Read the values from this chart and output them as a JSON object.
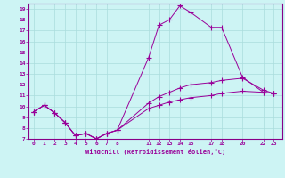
{
  "xlabel": "Windchill (Refroidissement éolien,°C)",
  "background_color": "#cdf4f4",
  "grid_color": "#aadddd",
  "line_color": "#990099",
  "spine_color": "#880088",
  "ylim": [
    7,
    19.5
  ],
  "xlim": [
    -0.5,
    23.8
  ],
  "yticks": [
    7,
    8,
    9,
    10,
    11,
    12,
    13,
    14,
    15,
    16,
    17,
    18,
    19
  ],
  "xticks": [
    0,
    1,
    2,
    3,
    4,
    5,
    6,
    7,
    8,
    11,
    12,
    13,
    14,
    15,
    17,
    18,
    20,
    22,
    23
  ],
  "line1_x": [
    0,
    1,
    2,
    3,
    4,
    5,
    6,
    7,
    8,
    11,
    12,
    13,
    14,
    15,
    17,
    18,
    20,
    22,
    23
  ],
  "line1_y": [
    9.5,
    10.1,
    9.4,
    8.5,
    7.3,
    7.5,
    7.0,
    7.5,
    7.8,
    14.5,
    17.5,
    18.0,
    19.3,
    18.7,
    17.3,
    17.3,
    12.7,
    11.3,
    11.2
  ],
  "line2_x": [
    0,
    1,
    2,
    3,
    4,
    5,
    6,
    7,
    8,
    11,
    12,
    13,
    14,
    15,
    17,
    18,
    20,
    22,
    23
  ],
  "line2_y": [
    9.5,
    10.1,
    9.4,
    8.5,
    7.3,
    7.5,
    7.0,
    7.5,
    7.8,
    10.3,
    10.9,
    11.3,
    11.7,
    12.0,
    12.2,
    12.4,
    12.6,
    11.5,
    11.2
  ],
  "line3_x": [
    0,
    1,
    2,
    3,
    4,
    5,
    6,
    7,
    8,
    11,
    12,
    13,
    14,
    15,
    17,
    18,
    20,
    22,
    23
  ],
  "line3_y": [
    9.5,
    10.1,
    9.4,
    8.5,
    7.3,
    7.5,
    7.0,
    7.5,
    7.8,
    9.8,
    10.1,
    10.4,
    10.6,
    10.8,
    11.0,
    11.2,
    11.4,
    11.3,
    11.2
  ]
}
